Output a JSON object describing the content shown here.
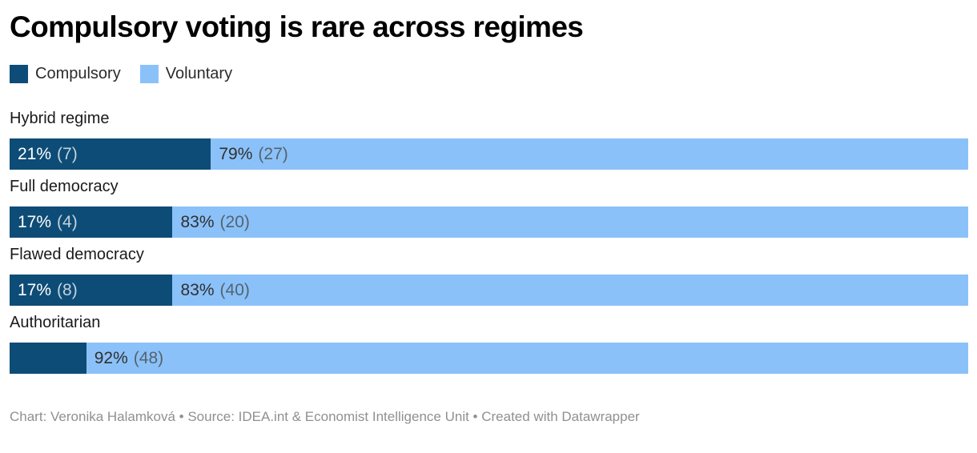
{
  "header": {
    "title": "Compulsory voting is rare across regimes"
  },
  "legend": {
    "items": [
      {
        "label": "Compulsory",
        "color": "#0d4c76"
      },
      {
        "label": "Voluntary",
        "color": "#8bc1f9"
      }
    ]
  },
  "chart_data": {
    "type": "bar",
    "orientation": "horizontal",
    "stacked": true,
    "title": "Compulsory voting is rare across regimes",
    "xlim": [
      0,
      100
    ],
    "legend_position": "top-left",
    "series_names": [
      "Compulsory",
      "Voluntary"
    ],
    "colors": {
      "Compulsory": "#0d4c76",
      "Voluntary": "#8bc1f9"
    },
    "categories": [
      "Hybrid regime",
      "Full democracy",
      "Flawed democracy",
      "Authoritarian"
    ],
    "rows": [
      {
        "category": "Hybrid regime",
        "segments": [
          {
            "series": "Compulsory",
            "pct": 21,
            "count": 7,
            "label_pct": "21%",
            "label_count": "(7)"
          },
          {
            "series": "Voluntary",
            "pct": 79,
            "count": 27,
            "label_pct": "79%",
            "label_count": "(27)"
          }
        ]
      },
      {
        "category": "Full democracy",
        "segments": [
          {
            "series": "Compulsory",
            "pct": 17,
            "count": 4,
            "label_pct": "17%",
            "label_count": "(4)"
          },
          {
            "series": "Voluntary",
            "pct": 83,
            "count": 20,
            "label_pct": "83%",
            "label_count": "(20)"
          }
        ]
      },
      {
        "category": "Flawed democracy",
        "segments": [
          {
            "series": "Compulsory",
            "pct": 17,
            "count": 8,
            "label_pct": "17%",
            "label_count": "(8)"
          },
          {
            "series": "Voluntary",
            "pct": 83,
            "count": 40,
            "label_pct": "83%",
            "label_count": "(40)"
          }
        ]
      },
      {
        "category": "Authoritarian",
        "segments": [
          {
            "series": "Compulsory",
            "pct": 8,
            "label_pct": "",
            "label_count": ""
          },
          {
            "series": "Voluntary",
            "pct": 92,
            "count": 48,
            "label_pct": "92%",
            "label_count": "(48)"
          }
        ]
      }
    ]
  },
  "footer": {
    "text": "Chart: Veronika Halamková • Source: IDEA.int & Economist Intelligence Unit • Created with Datawrapper"
  }
}
